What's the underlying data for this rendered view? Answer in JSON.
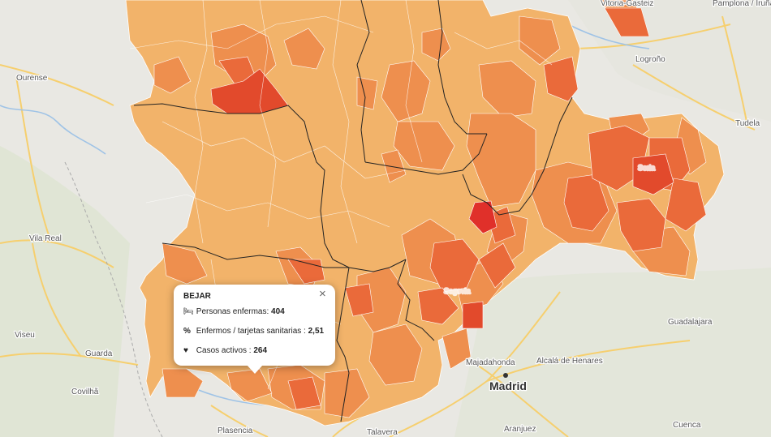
{
  "map": {
    "cities": {
      "ourense": "Ourense",
      "vila_real": "Vila Real",
      "viseu": "Viseu",
      "guarda": "Guarda",
      "covilha": "Covilhã",
      "plasencia": "Plasencia",
      "talavera": "Talavera",
      "aranjuez": "Aranjuez",
      "cuenca": "Cuenca",
      "madrid": "Madrid",
      "majadahonda": "Majadahonda",
      "alcala": "Alcalá de Henares",
      "guadalajara": "Guadalajara",
      "logrono": "Logroño",
      "tudela": "Tudela",
      "pamplona": "Pamplona / Iruña",
      "vitoria": "Vitoria-Gasteiz",
      "soria": "Soria",
      "segovia": "Segovia"
    },
    "colors": {
      "base_map": "#e8e7e2",
      "light": "#f2b36a",
      "medium": "#ee8f4e",
      "high": "#ea6a3a",
      "very_high": "#e24a2c",
      "max": "#e0302a"
    }
  },
  "popup": {
    "title": "BEJAR",
    "close_icon": "×",
    "rows": [
      {
        "icon": "bed-icon",
        "glyph": "🛏",
        "label": "Personas enfermas: ",
        "value": "404"
      },
      {
        "icon": "percent-icon",
        "glyph": "%",
        "label": "Enfermos / tarjetas sanitarias : ",
        "value": "2,51"
      },
      {
        "icon": "heartbeat-icon",
        "glyph": "♥",
        "label": "Casos activos : ",
        "value": "264"
      }
    ]
  }
}
